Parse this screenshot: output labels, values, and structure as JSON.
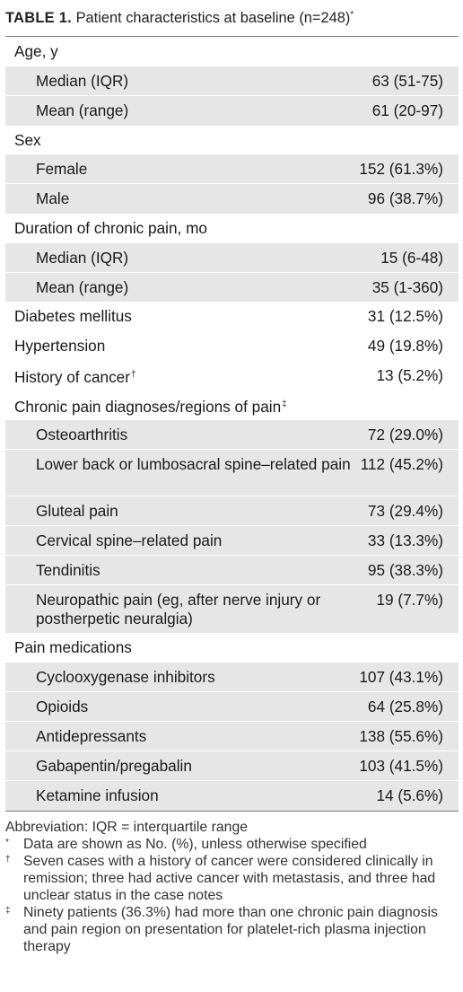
{
  "title": {
    "label": "TABLE 1.",
    "text": "Patient characteristics at baseline (n=248)",
    "mark": "*"
  },
  "rows": [
    {
      "label": "Age, y",
      "value": "",
      "indent": false
    },
    {
      "label": "Median (IQR)",
      "value": "63 (51-75)",
      "indent": true
    },
    {
      "label": "Mean (range)",
      "value": "61 (20-97)",
      "indent": true
    },
    {
      "label": "Sex",
      "value": "",
      "indent": false
    },
    {
      "label": "Female",
      "value": "152 (61.3%)",
      "indent": true
    },
    {
      "label": "Male",
      "value": "96 (38.7%)",
      "indent": true
    },
    {
      "label": "Duration of chronic pain, mo",
      "value": "",
      "indent": false
    },
    {
      "label": "Median (IQR)",
      "value": "15 (6-48)",
      "indent": true
    },
    {
      "label": "Mean (range)",
      "value": "35 (1-360)",
      "indent": true
    },
    {
      "label": "Diabetes mellitus",
      "value": "31 (12.5%)",
      "indent": false
    },
    {
      "label": "Hypertension",
      "value": "49 (19.8%)",
      "indent": false
    },
    {
      "label": "History of cancer",
      "value": "13 (5.2%)",
      "indent": false,
      "mark": "†"
    },
    {
      "label": "Chronic pain diagnoses/regions of pain",
      "value": "",
      "indent": false,
      "mark": "‡"
    },
    {
      "label": "Osteoarthritis",
      "value": "72 (29.0%)",
      "indent": true
    },
    {
      "label": "Lower back or lumbosacral spine–related pain",
      "value": "112 (45.2%)",
      "indent": true
    },
    {
      "label": "Gluteal pain",
      "value": "73 (29.4%)",
      "indent": true
    },
    {
      "label": "Cervical spine–related pain",
      "value": "33 (13.3%)",
      "indent": true
    },
    {
      "label": "Tendinitis",
      "value": "95 (38.3%)",
      "indent": true
    },
    {
      "label": "Neuropathic pain (eg, after nerve injury or postherpetic neuralgia)",
      "value": "19 (7.7%)",
      "indent": true
    },
    {
      "label": "Pain medications",
      "value": "",
      "indent": false
    },
    {
      "label": "Cyclooxygenase inhibitors",
      "value": "107 (43.1%)",
      "indent": true
    },
    {
      "label": "Opioids",
      "value": "64 (25.8%)",
      "indent": true
    },
    {
      "label": "Antidepressants",
      "value": "138 (55.6%)",
      "indent": true
    },
    {
      "label": "Gabapentin/pregabalin",
      "value": "103 (41.5%)",
      "indent": true
    },
    {
      "label": "Ketamine infusion",
      "value": "14 (5.6%)",
      "indent": true
    }
  ],
  "notes": {
    "abbreviation": "Abbreviation: IQR = interquartile range",
    "items": [
      {
        "symbol": "*",
        "text": "Data are shown as No. (%), unless otherwise specified"
      },
      {
        "symbol": "†",
        "text": "Seven cases with a history of cancer were considered clinically in remission; three had active cancer with metastasis, and three had unclear status in the case notes"
      },
      {
        "symbol": "‡",
        "text": "Ninety patients (36.3%) had more than one chronic pain diagnosis and pain region on presentation for platelet-rich plasma injection therapy"
      }
    ]
  },
  "colors": {
    "band": "#e6e6e6",
    "rule": "#7a7a7a",
    "text": "#1a1a1a"
  }
}
